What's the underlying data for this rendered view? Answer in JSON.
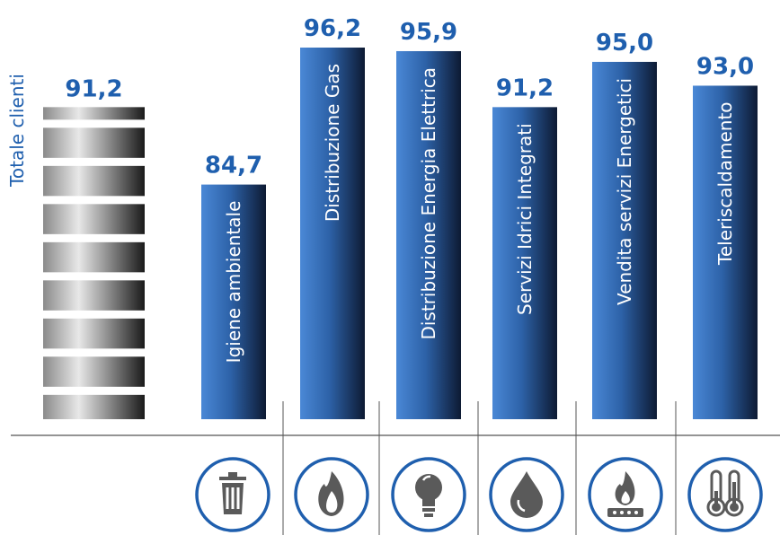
{
  "chart_data": {
    "type": "bar",
    "title": "",
    "xlabel": "",
    "ylabel": "",
    "total": {
      "label": "Totale clienti",
      "value": 91.2,
      "display": "91,2"
    },
    "categories": [
      "Igiene ambientale",
      "Distribuzione Gas",
      "Distribuzione Energia Elettrica",
      "Servizi Idrici Integrati",
      "Vendita servizi Energetici",
      "Teleriscaldamento"
    ],
    "values": [
      84.7,
      96.2,
      95.9,
      91.2,
      95.0,
      93.0
    ],
    "value_labels": [
      "84,7",
      "96,2",
      "95,9",
      "91,2",
      "95,0",
      "93,0"
    ],
    "icons": [
      "trash-icon",
      "flame-icon",
      "lightbulb-icon",
      "water-drop-icon",
      "gas-burner-icon",
      "thermometer-icon"
    ],
    "grid": false,
    "legend": "none"
  },
  "colors": {
    "accent": "#1f5fae",
    "bar_light": "#3f7fcf",
    "bar_dark": "#0f1f3a",
    "total_light": "#ffffff",
    "total_dark": "#111111",
    "icon_circle": "#1f5fae",
    "icon_fill": "#5a5a5a",
    "axis_line": "#555555"
  }
}
